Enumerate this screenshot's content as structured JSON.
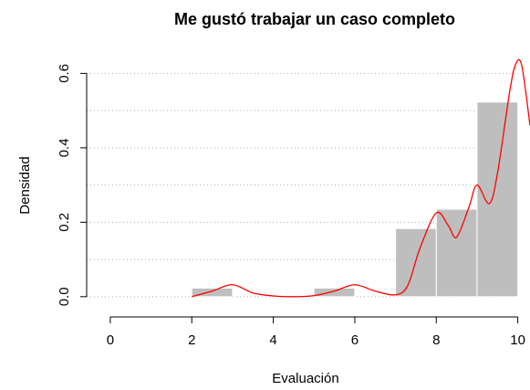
{
  "chart_data": {
    "type": "histogram",
    "title": "Me gustó trabajar un caso completo",
    "x_label": "Evaluación",
    "y_label": "Densidad",
    "bins": [
      0,
      1,
      2,
      3,
      4,
      5,
      6,
      7,
      8,
      9,
      10
    ],
    "values": [
      0,
      0,
      0.023,
      0,
      0,
      0.023,
      0,
      0.183,
      0.235,
      0.523
    ],
    "color": "#bebebe",
    "xlim": [
      -0.58,
      10.3
    ],
    "ylim": [
      -0.025,
      0.65
    ],
    "xticks": [
      0,
      2,
      4,
      6,
      8,
      10
    ],
    "yticks": [
      {
        "value": 0,
        "label": "0.0"
      },
      {
        "value": 0.2,
        "label": "0.2"
      },
      {
        "value": 0.4,
        "label": "0.4"
      },
      {
        "value": 0.6,
        "label": "0.6"
      }
    ],
    "grid": true,
    "grid_y": [
      0,
      0.1,
      0.2,
      0.3,
      0.4,
      0.5,
      0.6
    ],
    "density": {
      "color": "#ff0000",
      "x": [
        2,
        2.5,
        3,
        3.5,
        4,
        4.5,
        5,
        5.5,
        6,
        6.5,
        7,
        7.3,
        7.6,
        8,
        8.3,
        8.5,
        8.8,
        9,
        9.3,
        9.5,
        9.8,
        9.95,
        10.1,
        10.3
      ],
      "y": [
        0,
        0.015,
        0.032,
        0.01,
        0.002,
        0,
        0.003,
        0.015,
        0.032,
        0.015,
        0.005,
        0.03,
        0.13,
        0.225,
        0.19,
        0.16,
        0.24,
        0.3,
        0.25,
        0.33,
        0.55,
        0.625,
        0.62,
        0.46
      ]
    }
  }
}
